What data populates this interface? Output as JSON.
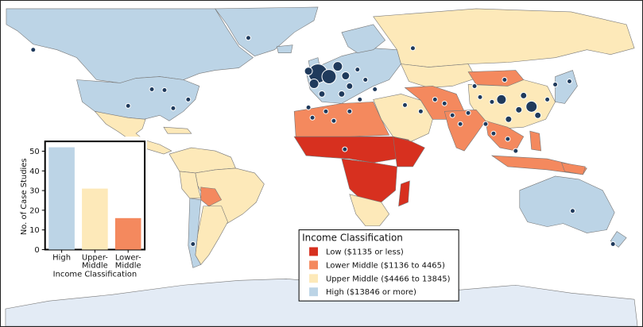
{
  "colors": {
    "low": "#d7301f",
    "lower_middle": "#f4895e",
    "upper_middle": "#fde9b9",
    "high": "#bcd4e6",
    "ocean": "#ffffff",
    "antarctica": "#e3ebf5",
    "marker": "#1f3a5c",
    "border": "#777777"
  },
  "legend": {
    "title": "Income Classification",
    "items": [
      {
        "label": "Low ($1135 or less)",
        "color": "#d7301f"
      },
      {
        "label": "Lower Middle ($1136 to 4465)",
        "color": "#f4895e"
      },
      {
        "label": "Upper Middle ($4466 to 13845)",
        "color": "#fde9b9"
      },
      {
        "label": "High ($13846 or more)",
        "color": "#bcd4e6"
      }
    ]
  },
  "chart_data": {
    "type": "bar",
    "categories": [
      "High",
      "Upper-\nMiddle",
      "Lower-\nMiddle"
    ],
    "category_lines": [
      [
        "High"
      ],
      [
        "Upper-",
        "Middle"
      ],
      [
        "Lower-",
        "Middle"
      ]
    ],
    "values": [
      52,
      31,
      16
    ],
    "colors": [
      "#bcd4e6",
      "#fde9b9",
      "#f4895e"
    ],
    "xlabel": "Income Classification",
    "ylabel": "No. of Case Studies",
    "ylim": [
      0,
      55
    ],
    "yticks": [
      0,
      10,
      20,
      30,
      40,
      50
    ],
    "grid": false
  }
}
